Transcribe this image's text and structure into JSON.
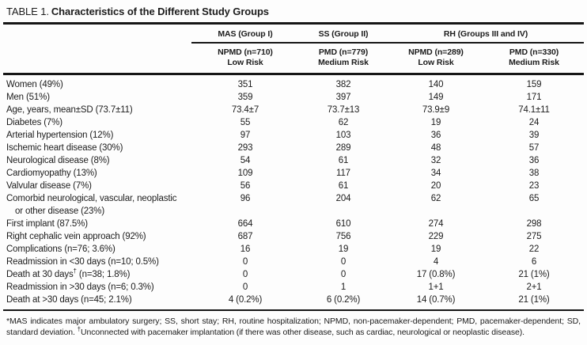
{
  "title": {
    "prefix": "TABLE 1.",
    "text": "Characteristics of the Different Study Groups"
  },
  "table": {
    "groups": [
      {
        "label": "MAS (Group I)",
        "span": 1
      },
      {
        "label": "SS (Group II)",
        "span": 1
      },
      {
        "label": "RH (Groups III and IV)",
        "span": 2
      }
    ],
    "columns": [
      {
        "line1": "NPMD (n=710)",
        "line2": "Low Risk"
      },
      {
        "line1": "PMD (n=779)",
        "line2": "Medium Risk"
      },
      {
        "line1": "NPMD (n=289)",
        "line2": "Low Risk"
      },
      {
        "line1": "PMD (n=330)",
        "line2": "Medium Risk"
      }
    ],
    "rows": [
      {
        "label": "Women (49%)",
        "values": [
          "351",
          "382",
          "140",
          "159"
        ]
      },
      {
        "label": "Men (51%)",
        "values": [
          "359",
          "397",
          "149",
          "171"
        ]
      },
      {
        "label": "Age, years, mean±SD (73.7±11)",
        "values": [
          "73.4±7",
          "73.7±13",
          "73.9±9",
          "74.1±11"
        ]
      },
      {
        "label": "Diabetes (7%)",
        "values": [
          "55",
          "62",
          "19",
          "24"
        ]
      },
      {
        "label": "Arterial hypertension (12%)",
        "values": [
          "97",
          "103",
          "36",
          "39"
        ]
      },
      {
        "label": "Ischemic heart disease (30%)",
        "values": [
          "293",
          "289",
          "48",
          "57"
        ]
      },
      {
        "label": "Neurological disease (8%)",
        "values": [
          "54",
          "61",
          "32",
          "36"
        ]
      },
      {
        "label": "Cardiomyopathy (13%)",
        "values": [
          "109",
          "117",
          "34",
          "38"
        ]
      },
      {
        "label": "Valvular disease (7%)",
        "values": [
          "56",
          "61",
          "20",
          "23"
        ]
      },
      {
        "label": "Comorbid neurological, vascular, neoplastic",
        "label2": "or other disease (23%)",
        "values": [
          "96",
          "204",
          "62",
          "65"
        ]
      },
      {
        "label": "First implant (87.5%)",
        "values": [
          "664",
          "610",
          "274",
          "298"
        ]
      },
      {
        "label": "Right cephalic vein approach (92%)",
        "values": [
          "687",
          "756",
          "229",
          "275"
        ]
      },
      {
        "label": "Complications (n=76; 3.6%)",
        "values": [
          "16",
          "19",
          "19",
          "22"
        ]
      },
      {
        "label": "Readmission in <30 days (n=10; 0.5%)",
        "values": [
          "0",
          "0",
          "4",
          "6"
        ]
      },
      {
        "label": "Death at 30 days",
        "sup": "†",
        "rest": " (n=38; 1.8%)",
        "values": [
          "0",
          "0",
          "17 (0.8%)",
          "21 (1%)"
        ]
      },
      {
        "label": "Readmission in >30 days (n=6; 0.3%)",
        "values": [
          "0",
          "1",
          "1+1",
          "2+1"
        ]
      },
      {
        "label": "Death at >30 days (n=45; 2.1%)",
        "values": [
          "4 (0.2%)",
          "6 (0.2%)",
          "14 (0.7%)",
          "21 (1%)"
        ]
      }
    ]
  },
  "footnote": {
    "part1": "*MAS indicates major ambulatory surgery; SS, short stay; RH, routine hospitalization; NPMD, non-pacemaker-dependent; PMD, pacemaker-dependent; SD, standard deviation. ",
    "sup": "†",
    "part2": "Unconnected with pacemaker implantation (if there was other disease, such as cardiac, neurological or neoplastic disease)."
  },
  "colors": {
    "background": "#fdfdfd",
    "text": "#1c1c1c",
    "rule": "#161616"
  }
}
